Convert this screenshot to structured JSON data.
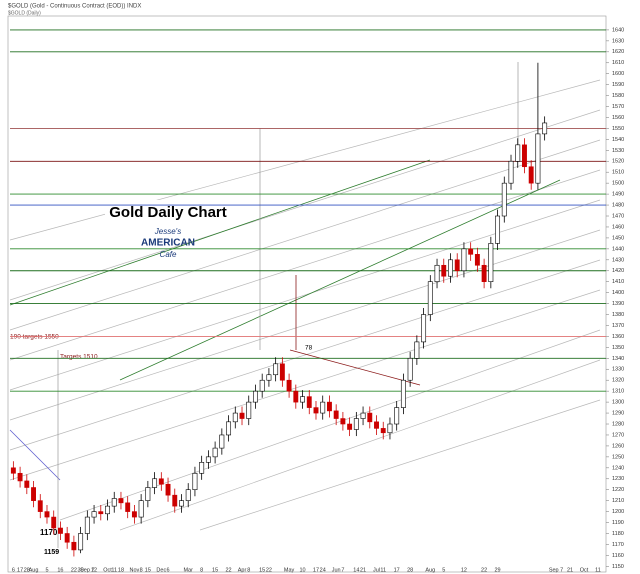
{
  "chart_data": {
    "type": "candlestick",
    "header": "$GOLD (Gold - Continuous Contract (EOD)) INDX",
    "subheader": "$GOLD (Daily)",
    "title": "Gold Daily Chart",
    "logo": [
      "Jesse's",
      "AMERICAN",
      "Cafe"
    ],
    "annotations": [
      "1170",
      "1159",
      "190 targets 1550",
      "Targets 1510",
      "78"
    ],
    "categories": [
      "6",
      "17",
      "28",
      "Aug",
      null,
      "5",
      null,
      "16",
      null,
      "22",
      "30",
      "Sep 7",
      "12",
      null,
      "Oct",
      "11",
      "18",
      null,
      "Nov",
      "8",
      "15",
      null,
      "Dec",
      "6",
      null,
      null,
      "Mar",
      null,
      "8",
      null,
      "15",
      null,
      "22",
      null,
      "Apr",
      "8",
      null,
      "15",
      "22",
      null,
      null,
      "May",
      null,
      "10",
      null,
      "17",
      "24",
      null,
      "Jun",
      "7",
      null,
      "14",
      "21",
      null,
      "Jul",
      "11",
      null,
      "17",
      null,
      "28",
      null,
      null,
      "Aug",
      null,
      "5",
      null,
      null,
      "12",
      null,
      null,
      "22",
      null,
      "29",
      null,
      null,
      null,
      null,
      null,
      null,
      null
    ],
    "extra_x_labels": [
      "Sep 7",
      "21",
      "Oct",
      "11"
    ],
    "open": [
      1240,
      1235,
      1228,
      1222,
      1210,
      1200,
      1195,
      1185,
      1180,
      1172,
      1165,
      1180,
      1195,
      1200,
      1198,
      1205,
      1212,
      1208,
      1200,
      1195,
      1210,
      1222,
      1230,
      1225,
      1215,
      1205,
      1210,
      1220,
      1235,
      1245,
      1250,
      1258,
      1270,
      1282,
      1290,
      1285,
      1300,
      1310,
      1320,
      1325,
      1335,
      1320,
      1310,
      1300,
      1305,
      1295,
      1290,
      1300,
      1292,
      1285,
      1280,
      1275,
      1285,
      1290,
      1282,
      1276,
      1272,
      1280,
      1295,
      1320,
      1340,
      1355,
      1380,
      1410,
      1425,
      1415,
      1430,
      1420,
      1440,
      1435,
      1425,
      1410,
      1445,
      1470,
      1500,
      1520,
      1535,
      1515,
      1500,
      1545
    ],
    "high": [
      1246,
      1241,
      1234,
      1228,
      1216,
      1206,
      1201,
      1191,
      1186,
      1178,
      1186,
      1201,
      1206,
      1206,
      1211,
      1218,
      1218,
      1214,
      1206,
      1216,
      1228,
      1236,
      1236,
      1231,
      1221,
      1216,
      1226,
      1241,
      1251,
      1256,
      1264,
      1276,
      1288,
      1296,
      1296,
      1306,
      1316,
      1326,
      1331,
      1341,
      1341,
      1326,
      1316,
      1311,
      1311,
      1301,
      1306,
      1306,
      1298,
      1291,
      1286,
      1291,
      1296,
      1296,
      1288,
      1282,
      1286,
      1301,
      1326,
      1346,
      1361,
      1386,
      1416,
      1431,
      1431,
      1436,
      1436,
      1446,
      1446,
      1441,
      1431,
      1451,
      1476,
      1506,
      1526,
      1541,
      1541,
      1521,
      1610,
      1561
    ],
    "low": [
      1229,
      1222,
      1216,
      1204,
      1194,
      1189,
      1179,
      1174,
      1166,
      1159,
      1162,
      1174,
      1189,
      1192,
      1192,
      1199,
      1202,
      1194,
      1189,
      1189,
      1204,
      1216,
      1219,
      1209,
      1199,
      1199,
      1204,
      1214,
      1229,
      1239,
      1244,
      1252,
      1264,
      1276,
      1279,
      1279,
      1294,
      1304,
      1314,
      1319,
      1314,
      1304,
      1294,
      1294,
      1289,
      1284,
      1284,
      1286,
      1279,
      1274,
      1269,
      1269,
      1279,
      1276,
      1270,
      1266,
      1266,
      1274,
      1289,
      1314,
      1334,
      1349,
      1374,
      1404,
      1409,
      1409,
      1414,
      1414,
      1429,
      1419,
      1404,
      1404,
      1439,
      1464,
      1494,
      1514,
      1509,
      1494,
      1494,
      1539
    ],
    "close": [
      1235,
      1228,
      1222,
      1210,
      1200,
      1195,
      1185,
      1180,
      1172,
      1165,
      1180,
      1195,
      1200,
      1198,
      1205,
      1212,
      1208,
      1200,
      1195,
      1210,
      1222,
      1230,
      1225,
      1215,
      1205,
      1210,
      1220,
      1235,
      1245,
      1250,
      1258,
      1270,
      1282,
      1290,
      1285,
      1300,
      1310,
      1320,
      1325,
      1335,
      1320,
      1310,
      1300,
      1305,
      1295,
      1290,
      1300,
      1292,
      1285,
      1280,
      1275,
      1285,
      1290,
      1282,
      1276,
      1272,
      1280,
      1295,
      1320,
      1340,
      1355,
      1380,
      1410,
      1425,
      1415,
      1430,
      1420,
      1440,
      1435,
      1425,
      1410,
      1445,
      1470,
      1500,
      1520,
      1535,
      1515,
      1500,
      1545,
      1555
    ],
    "up_color": "#000000",
    "down_color": "#cc0000",
    "ylim": [
      1143,
      1660
    ],
    "yticks": [
      1150,
      1160,
      1170,
      1180,
      1190,
      1200,
      1210,
      1220,
      1230,
      1240,
      1250,
      1260,
      1270,
      1280,
      1290,
      1300,
      1310,
      1320,
      1330,
      1340,
      1350,
      1360,
      1370,
      1380,
      1390,
      1400,
      1410,
      1420,
      1430,
      1440,
      1450,
      1460,
      1470,
      1480,
      1490,
      1500,
      1510,
      1520,
      1530,
      1540,
      1550,
      1560,
      1570,
      1580,
      1590,
      1600,
      1610,
      1620,
      1630,
      1640
    ],
    "hlines": [
      {
        "value": 1640,
        "color": "#1e6e1e"
      },
      {
        "value": 1620,
        "color": "#1e6e1e"
      },
      {
        "value": 1550,
        "color": "#a05050"
      },
      {
        "value": 1520,
        "color": "#7a1010"
      },
      {
        "value": 1490,
        "color": "#2e8b2e"
      },
      {
        "value": 1480,
        "color": "#3050c0"
      },
      {
        "value": 1440,
        "color": "#2e8b2e"
      },
      {
        "value": 1420,
        "color": "#1e6e1e"
      },
      {
        "value": 1390,
        "color": "#1e6e1e"
      },
      {
        "value": 1360,
        "color": "#e07070"
      },
      {
        "value": 1340,
        "color": "#1e6e1e"
      },
      {
        "value": 1310,
        "color": "#2e8b2e"
      }
    ]
  }
}
